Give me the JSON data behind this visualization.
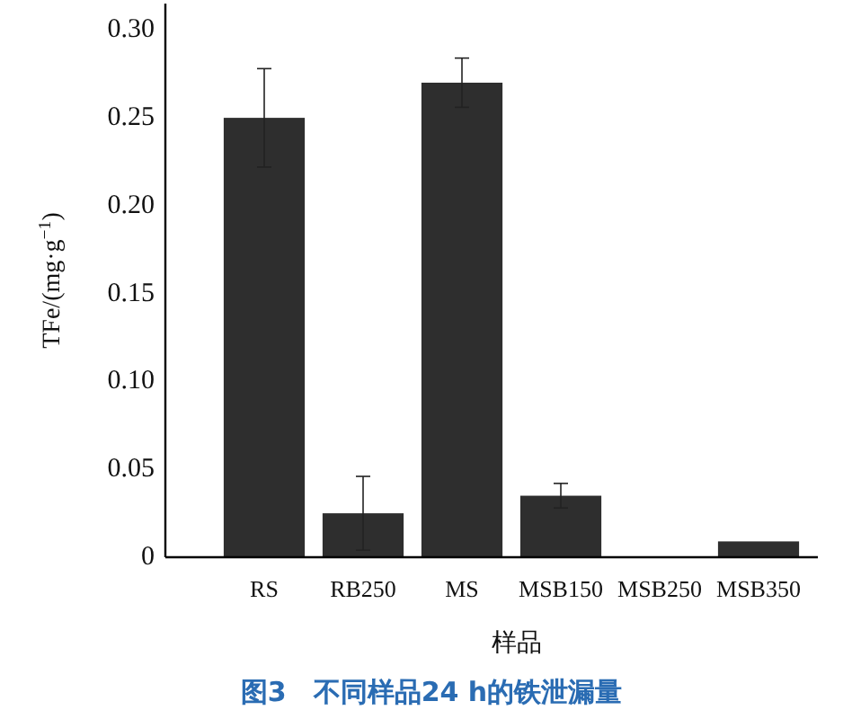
{
  "chart_data": {
    "type": "bar",
    "ylabel": "TFe/(mg·g$^{−1}$)",
    "xlabel": "样品",
    "annotations": [
      "图3　不同样品24 h的铁泄漏量"
    ],
    "categories": [
      "RS",
      "RB250",
      "MS",
      "MSB150",
      "MSB250",
      "MSB350"
    ],
    "values": [
      0.25,
      0.025,
      0.27,
      0.035,
      0,
      0.009
    ],
    "errors": [
      0.028,
      0.021,
      0.014,
      0.007,
      null,
      null
    ],
    "color": "#2e2e2e",
    "ylim": [
      0,
      0.315
    ],
    "yticks": [
      0,
      0.05,
      {
        "value": 0.1,
        "label": "0.10"
      },
      0.15,
      {
        "value": 0.2,
        "label": "0.20"
      },
      0.25,
      {
        "value": 0.3,
        "label": "0.30"
      }
    ]
  }
}
